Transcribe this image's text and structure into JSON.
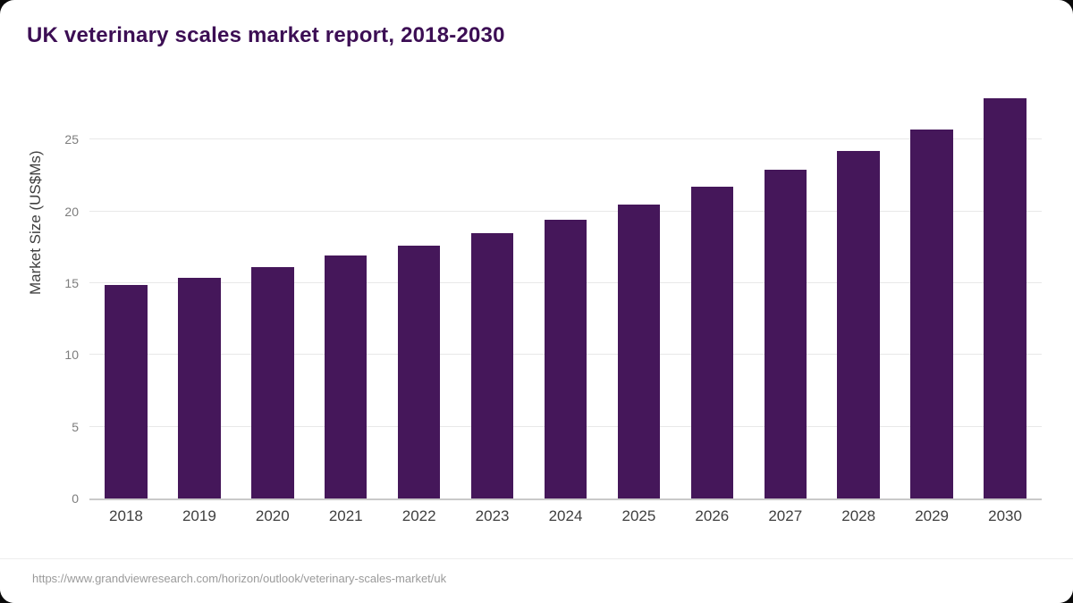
{
  "title": "UK veterinary scales market report, 2018-2030",
  "source_url": "https://www.grandviewresearch.com/horizon/outlook/veterinary-scales-market/uk",
  "colors": {
    "bar": "#45175a",
    "title": "#3c0e54",
    "gridline": "#e8e8e8",
    "axis": "#c9c9c9"
  },
  "chart_data": {
    "type": "bar",
    "title": "UK veterinary scales market report, 2018-2030",
    "xlabel": "",
    "ylabel": "Market Size (US$Ms)",
    "categories": [
      "2018",
      "2019",
      "2020",
      "2021",
      "2022",
      "2023",
      "2024",
      "2025",
      "2026",
      "2027",
      "2028",
      "2029",
      "2030"
    ],
    "values": [
      14.9,
      15.4,
      16.1,
      16.9,
      17.6,
      18.5,
      19.4,
      20.5,
      21.7,
      22.9,
      24.2,
      25.7,
      27.9
    ],
    "ylim": [
      0,
      28
    ],
    "yticks": [
      0,
      5,
      10,
      15,
      20,
      25
    ],
    "grid": true,
    "legend": false
  }
}
